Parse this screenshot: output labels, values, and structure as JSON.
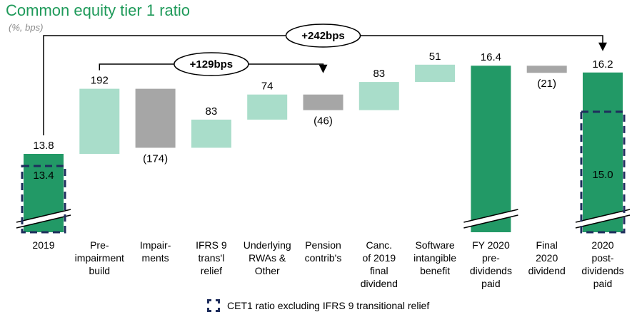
{
  "title": "Common equity tier 1 ratio",
  "subtitle": "(%, bps)",
  "chart_data": {
    "type": "waterfall",
    "title": "Common equity tier 1 ratio",
    "units": "(%, bps)",
    "colors": {
      "total": "#229966",
      "increase": "#a9ddca",
      "decrease": "#a6a6a6",
      "relief_box": "#1e2d5c",
      "connector": "#000000"
    },
    "categories": [
      "2019",
      "Pre-impairment build",
      "Impairments",
      "IFRS 9 trans'l relief",
      "Underlying RWAs & Other",
      "Pension contrib's",
      "Canc. of 2019 final dividend",
      "Software intangible benefit",
      "FY 2020 pre-dividends paid",
      "Final 2020 dividend",
      "2020 post-dividends paid"
    ],
    "category_lines": [
      [
        "2019"
      ],
      [
        "Pre-",
        "impairment",
        "build"
      ],
      [
        "Impair-",
        "ments"
      ],
      [
        "IFRS 9",
        "trans'l",
        "relief"
      ],
      [
        "Underlying",
        "RWAs &",
        "Other"
      ],
      [
        "Pension",
        "contrib's"
      ],
      [
        "Canc.",
        "of 2019",
        "final",
        "dividend"
      ],
      [
        "Software",
        "intangible",
        "benefit"
      ],
      [
        "FY 2020",
        "pre-",
        "dividends",
        "paid"
      ],
      [
        "Final",
        "2020",
        "dividend"
      ],
      [
        "2020",
        "post-",
        "dividends",
        "paid"
      ]
    ],
    "steps": [
      {
        "kind": "total",
        "value": 13.8,
        "label": "13.8"
      },
      {
        "kind": "increase",
        "value": 192,
        "label": "192"
      },
      {
        "kind": "decrease",
        "value": -174,
        "label": "(174)"
      },
      {
        "kind": "increase",
        "value": 83,
        "label": "83"
      },
      {
        "kind": "increase",
        "value": 74,
        "label": "74"
      },
      {
        "kind": "decrease",
        "value": -46,
        "label": "(46)"
      },
      {
        "kind": "increase",
        "value": 83,
        "label": "83"
      },
      {
        "kind": "increase",
        "value": 51,
        "label": "51"
      },
      {
        "kind": "total",
        "value": 16.4,
        "label": "16.4"
      },
      {
        "kind": "decrease",
        "value": -21,
        "label": "(21)"
      },
      {
        "kind": "total",
        "value": 16.2,
        "label": "16.2"
      }
    ],
    "relief_excluded": [
      {
        "category": "2019",
        "value": 13.4,
        "label": "13.4"
      },
      {
        "category": "2020 post-dividends paid",
        "value": 15.0,
        "label": "15.0"
      }
    ],
    "annotations": [
      {
        "text": "+129bps",
        "from": "Pre-impairment build",
        "to": "Pension contrib's"
      },
      {
        "text": "+242bps",
        "from": "2019",
        "to": "2020 post-dividends paid"
      }
    ],
    "axis_break": true,
    "legend": {
      "label": "CET1 ratio excluding IFRS 9 transitional relief",
      "position": "bottom"
    }
  }
}
